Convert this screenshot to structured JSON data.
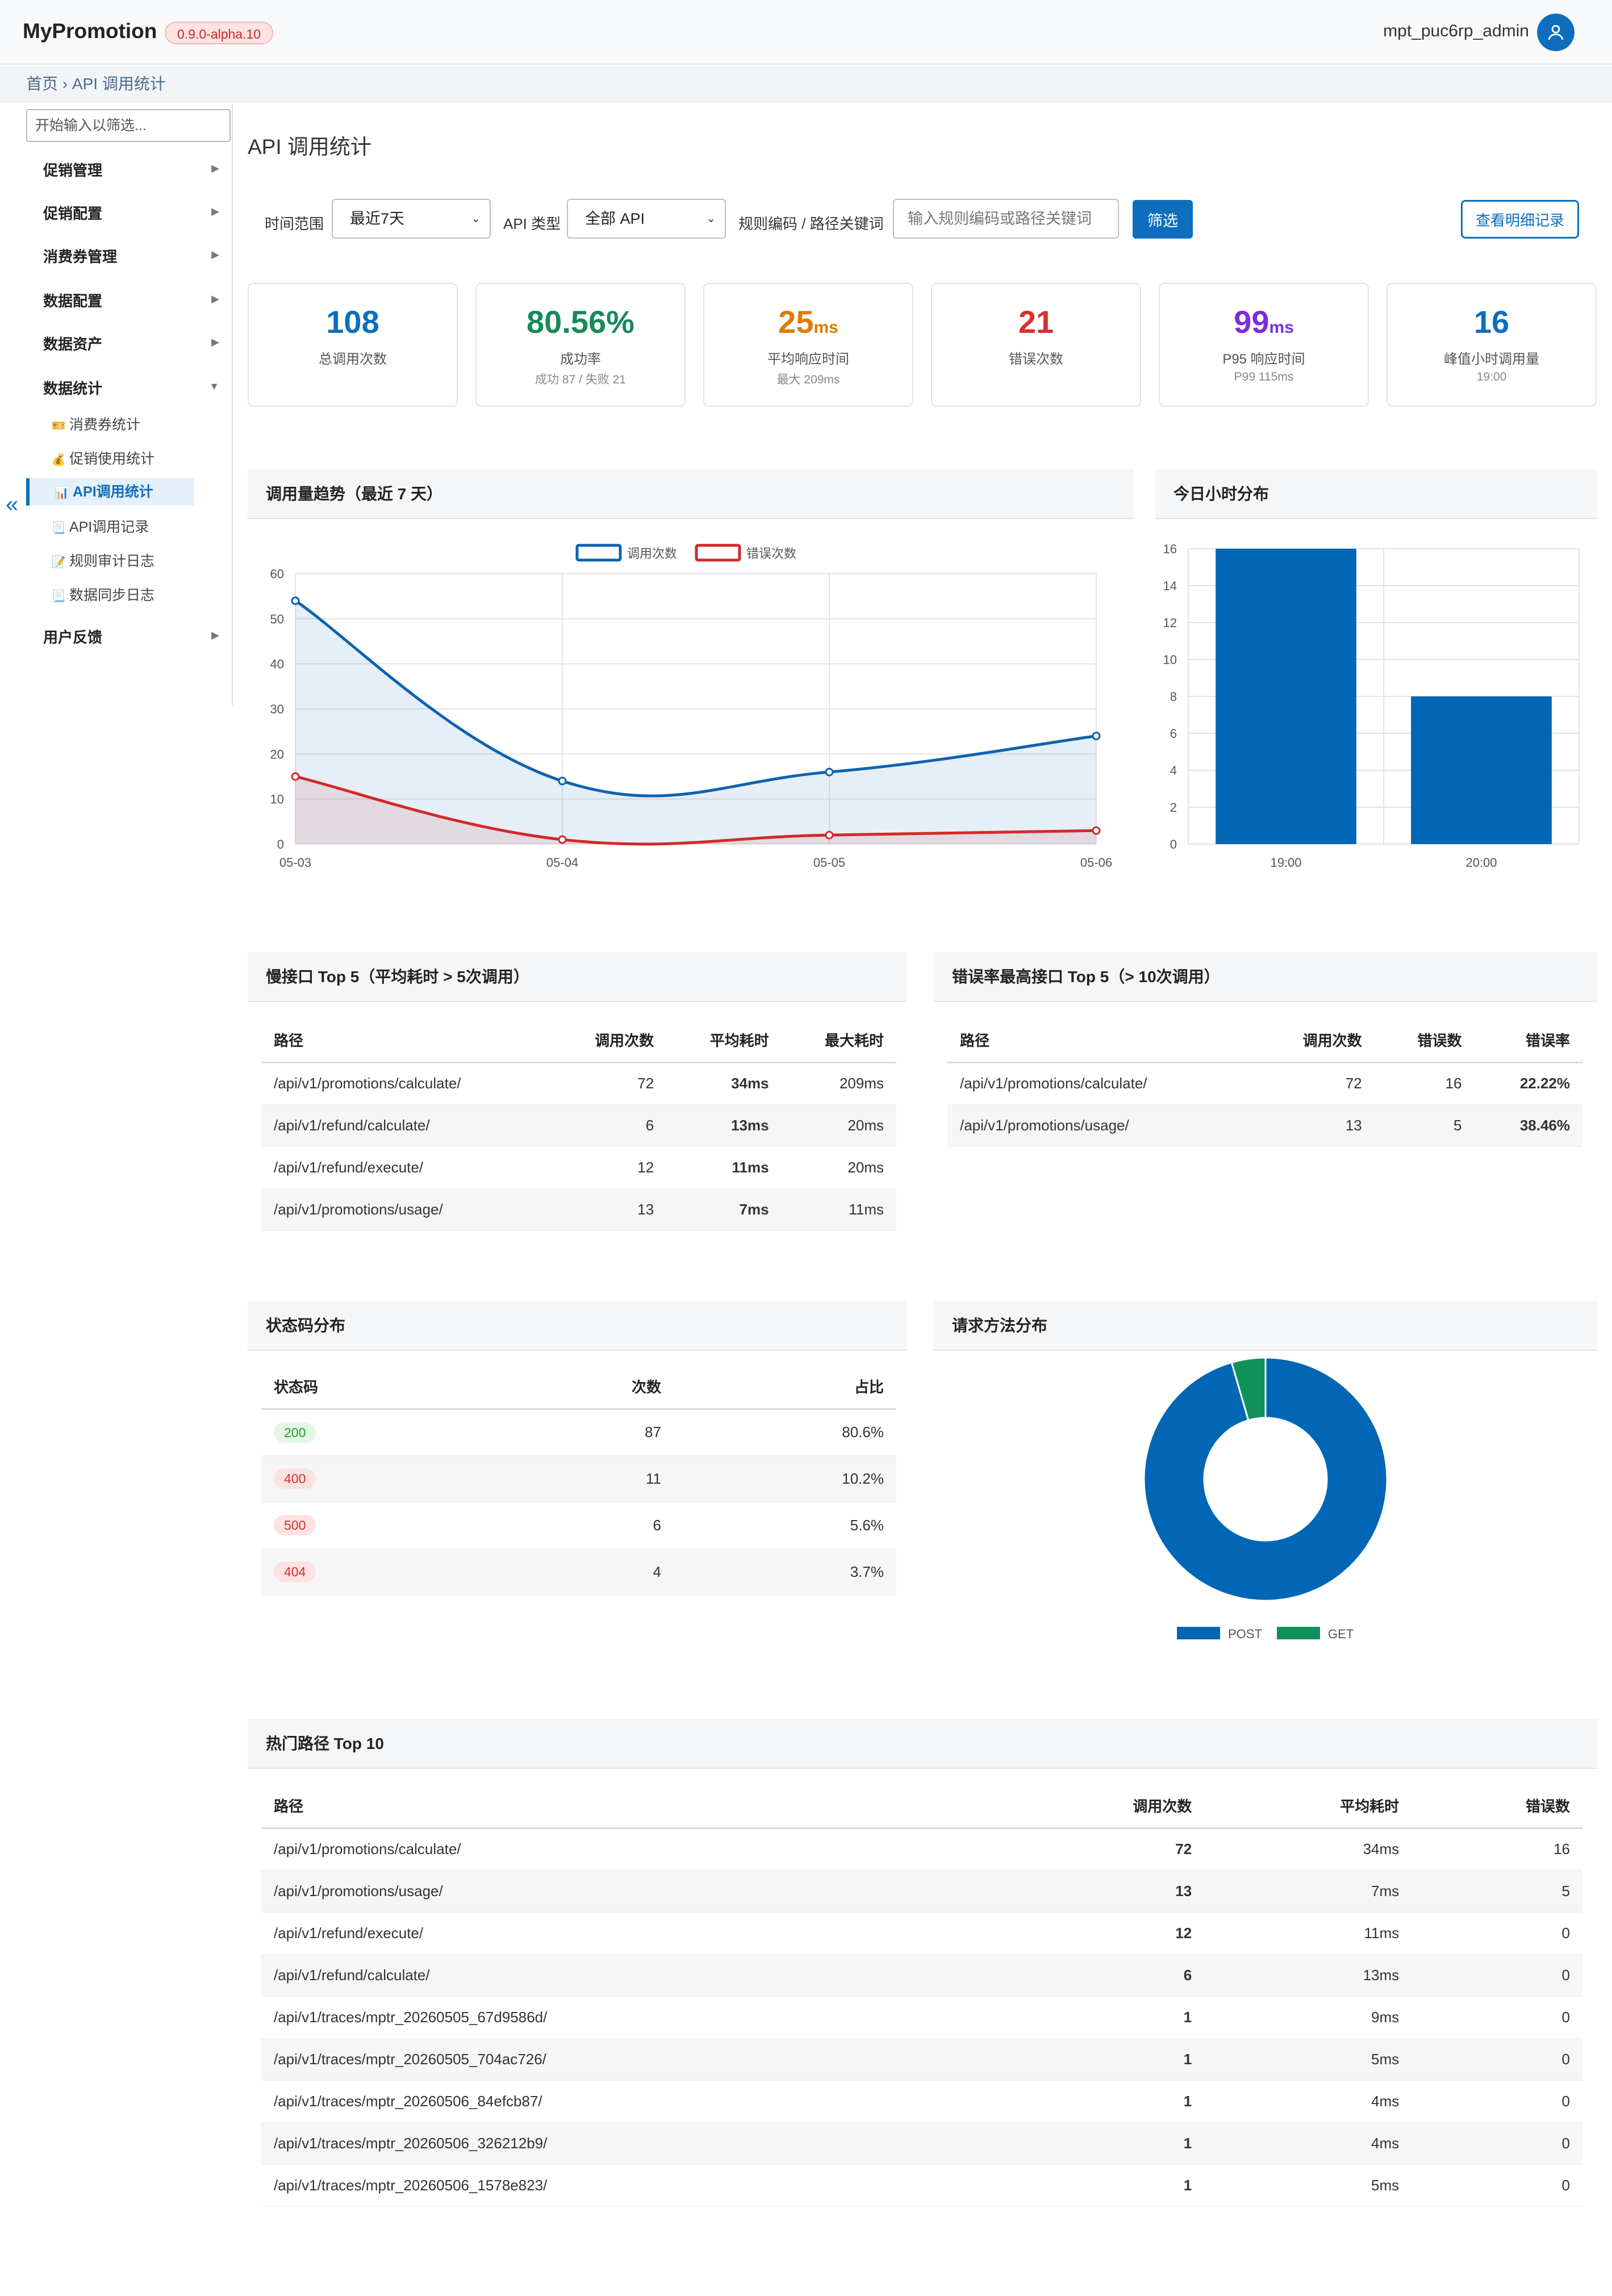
{
  "header": {
    "brand": "MyPromotion",
    "version": "0.9.0-alpha.10",
    "user": "mpt_puc6rp_admin"
  },
  "breadcrumb": {
    "home": "首页",
    "separator": "›",
    "current": "API 调用统计"
  },
  "sidebar": {
    "filter_placeholder": "开始输入以筛选...",
    "collapse": "«",
    "menus": [
      "促销管理",
      "促销配置",
      "消费券管理",
      "数据配置",
      "数据资产",
      "数据统计",
      "用户反馈"
    ],
    "sub_items": [
      {
        "icon": "🎫",
        "label": "消费券统计"
      },
      {
        "icon": "💰",
        "label": "促销使用统计"
      },
      {
        "icon": "📊",
        "label": "API调用统计"
      },
      {
        "icon": "📃",
        "label": "API调用记录"
      },
      {
        "icon": "📝",
        "label": "规则审计日志"
      },
      {
        "icon": "📃",
        "label": "数据同步日志"
      }
    ]
  },
  "page": {
    "title": "API 调用统计"
  },
  "filters": {
    "time_label": "时间范围",
    "time_value": "最近7天",
    "api_label": "API 类型",
    "api_value": "全部 API",
    "keyword_label": "规则编码 / 路径关键词",
    "keyword_placeholder": "输入规则编码或路径关键词",
    "filter_button": "筛选",
    "detail_button": "查看明细记录"
  },
  "stats": [
    {
      "value": "108",
      "unit": "",
      "label": "总调用次数",
      "sub": "",
      "color": "#0d6ebd"
    },
    {
      "value": "80.56%",
      "unit": "",
      "label": "成功率",
      "sub": "成功 87 / 失败 21",
      "color": "#168a5b"
    },
    {
      "value": "25",
      "unit": "ms",
      "label": "平均响应时间",
      "sub": "最大 209ms",
      "color": "#e07b00"
    },
    {
      "value": "21",
      "unit": "",
      "label": "错误次数",
      "sub": "",
      "color": "#d63031"
    },
    {
      "value": "99",
      "unit": "ms",
      "label": "P95 响应时间",
      "sub": "P99 115ms",
      "color": "#7b2fd6"
    },
    {
      "value": "16",
      "unit": "",
      "label": "峰值小时调用量",
      "sub": "19:00",
      "color": "#0d6ebd"
    }
  ],
  "panels": {
    "trend": "调用量趋势（最近 7 天）",
    "hourly": "今日小时分布",
    "slow": "慢接口 Top 5（平均耗时 > 5次调用）",
    "error_rate": "错误率最高接口 Top 5（> 10次调用）",
    "status": "状态码分布",
    "method": "请求方法分布",
    "hot": "热门路径 Top 10"
  },
  "chart_data": [
    {
      "type": "line",
      "x": [
        "05-03",
        "05-04",
        "05-05",
        "05-06"
      ],
      "series": [
        {
          "name": "调用次数",
          "values": [
            54,
            14,
            16,
            24
          ],
          "color": "#0d62b0"
        },
        {
          "name": "错误次数",
          "values": [
            15,
            1,
            2,
            3
          ],
          "color": "#d02a2a"
        }
      ],
      "ylim": [
        0,
        60
      ],
      "yticks": [
        0,
        10,
        20,
        30,
        40,
        50,
        60
      ],
      "legend": "top-center",
      "grid": true
    },
    {
      "type": "bar",
      "categories": [
        "19:00",
        "20:00"
      ],
      "values": [
        16,
        8
      ],
      "ylim": [
        0,
        16
      ],
      "yticks": [
        0,
        2,
        4,
        6,
        8,
        10,
        12,
        14,
        16
      ],
      "color": "#0066b5",
      "grid": true
    },
    {
      "type": "pie",
      "labels": [
        "POST",
        "GET"
      ],
      "values": [
        95.5,
        4.5
      ],
      "colors": [
        "#0066b5",
        "#10915b"
      ],
      "donut": true,
      "legend": "bottom"
    }
  ],
  "slow_table": {
    "headers": [
      "路径",
      "调用次数",
      "平均耗时",
      "最大耗时"
    ],
    "rows": [
      [
        "/api/v1/promotions/calculate/",
        "72",
        "34ms",
        "209ms"
      ],
      [
        "/api/v1/refund/calculate/",
        "6",
        "13ms",
        "20ms"
      ],
      [
        "/api/v1/refund/execute/",
        "12",
        "11ms",
        "20ms"
      ],
      [
        "/api/v1/promotions/usage/",
        "13",
        "7ms",
        "11ms"
      ]
    ]
  },
  "error_table": {
    "headers": [
      "路径",
      "调用次数",
      "错误数",
      "错误率"
    ],
    "rows": [
      [
        "/api/v1/promotions/calculate/",
        "72",
        "16",
        "22.22%"
      ],
      [
        "/api/v1/promotions/usage/",
        "13",
        "5",
        "38.46%"
      ]
    ]
  },
  "status_table": {
    "headers": [
      "状态码",
      "次数",
      "占比"
    ],
    "rows": [
      [
        "200",
        "87",
        "80.6%"
      ],
      [
        "400",
        "11",
        "10.2%"
      ],
      [
        "500",
        "6",
        "5.6%"
      ],
      [
        "404",
        "4",
        "3.7%"
      ]
    ]
  },
  "hot_table": {
    "headers": [
      "路径",
      "调用次数",
      "平均耗时",
      "错误数"
    ],
    "rows": [
      [
        "/api/v1/promotions/calculate/",
        "72",
        "34ms",
        "16"
      ],
      [
        "/api/v1/promotions/usage/",
        "13",
        "7ms",
        "5"
      ],
      [
        "/api/v1/refund/execute/",
        "12",
        "11ms",
        "0"
      ],
      [
        "/api/v1/refund/calculate/",
        "6",
        "13ms",
        "0"
      ],
      [
        "/api/v1/traces/mptr_20260505_67d9586d/",
        "1",
        "9ms",
        "0"
      ],
      [
        "/api/v1/traces/mptr_20260505_704ac726/",
        "1",
        "5ms",
        "0"
      ],
      [
        "/api/v1/traces/mptr_20260506_84efcb87/",
        "1",
        "4ms",
        "0"
      ],
      [
        "/api/v1/traces/mptr_20260506_326212b9/",
        "1",
        "4ms",
        "0"
      ],
      [
        "/api/v1/traces/mptr_20260506_1578e823/",
        "1",
        "5ms",
        "0"
      ]
    ]
  }
}
